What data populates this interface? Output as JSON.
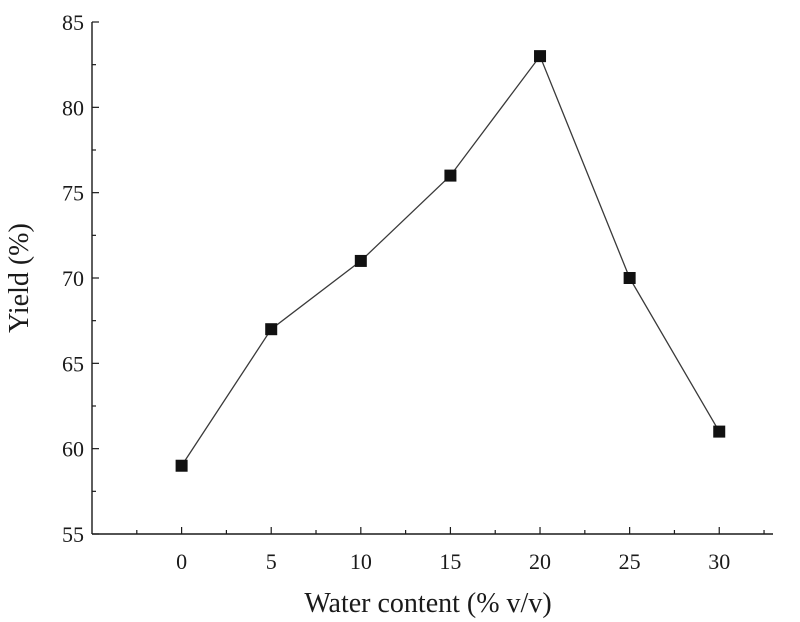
{
  "chart_data": {
    "type": "line",
    "xlabel": "Water content (% v/v)",
    "ylabel": "Yield (%)",
    "xlim": [
      -5,
      33
    ],
    "ylim": [
      55,
      85
    ],
    "xticks": [
      0,
      5,
      10,
      15,
      20,
      25,
      30
    ],
    "yticks": [
      55,
      60,
      65,
      70,
      75,
      80,
      85
    ],
    "grid": false,
    "legend": "none",
    "marker": "square",
    "series": [
      {
        "x": [
          0,
          5,
          10,
          15,
          20,
          25,
          30
        ],
        "y": [
          59,
          67,
          71,
          76,
          83,
          70,
          61
        ]
      }
    ]
  }
}
